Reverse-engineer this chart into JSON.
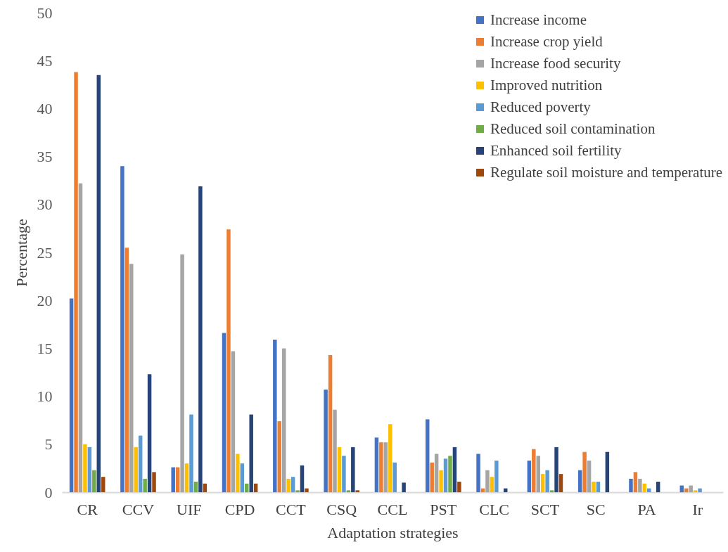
{
  "chart_data": {
    "type": "bar",
    "xlabel": "Adaptation strategies",
    "ylabel": "Percentage",
    "categories": [
      "CR",
      "CCV",
      "UIF",
      "CPD",
      "CCT",
      "CSQ",
      "CCL",
      "PST",
      "CLC",
      "SCT",
      "SC",
      "PA",
      "Ir"
    ],
    "ylim": [
      0,
      50
    ],
    "yticks": [
      0,
      5,
      10,
      15,
      20,
      25,
      30,
      35,
      40,
      45,
      50
    ],
    "legend": "top right",
    "series": [
      {
        "name": "Increase income",
        "color": "#4472c4",
        "values": [
          20.2,
          34.0,
          2.6,
          16.6,
          15.9,
          10.7,
          5.7,
          7.6,
          4.0,
          3.3,
          2.3,
          1.4,
          0.7
        ]
      },
      {
        "name": "Increase crop yield",
        "color": "#ed7d31",
        "values": [
          43.8,
          25.5,
          2.6,
          27.4,
          7.4,
          14.3,
          5.2,
          3.1,
          0.4,
          4.5,
          4.2,
          2.1,
          0.4
        ]
      },
      {
        "name": "Increase food security",
        "color": "#a5a5a5",
        "values": [
          32.2,
          23.8,
          24.8,
          14.7,
          15.0,
          8.6,
          5.2,
          4.0,
          2.3,
          3.8,
          3.3,
          1.4,
          0.7
        ]
      },
      {
        "name": "Improved nutrition",
        "color": "#ffc000",
        "values": [
          5.0,
          4.7,
          3.0,
          4.0,
          1.4,
          4.7,
          7.1,
          2.3,
          1.6,
          1.9,
          1.1,
          0.9,
          0.2
        ]
      },
      {
        "name": "Reduced poverty",
        "color": "#5b9bd5",
        "values": [
          4.7,
          5.9,
          8.1,
          3.0,
          1.6,
          3.8,
          3.1,
          3.5,
          3.3,
          2.3,
          1.1,
          0.4,
          0.4
        ]
      },
      {
        "name": "Reduced soil contamination",
        "color": "#70ad47",
        "values": [
          2.3,
          1.4,
          1.1,
          0.9,
          0.2,
          0.2,
          null,
          3.8,
          null,
          0.2,
          null,
          null,
          null
        ]
      },
      {
        "name": "Enhanced soil fertility",
        "color": "#264478",
        "values": [
          43.5,
          12.3,
          31.9,
          8.1,
          2.8,
          4.7,
          1.0,
          4.7,
          0.4,
          4.7,
          4.2,
          1.1,
          null
        ]
      },
      {
        "name": "Regulate soil moisture and temperature",
        "color": "#9e480e",
        "values": [
          1.6,
          2.1,
          0.9,
          0.9,
          0.4,
          0.2,
          null,
          1.1,
          null,
          1.9,
          null,
          null,
          null
        ]
      }
    ]
  }
}
